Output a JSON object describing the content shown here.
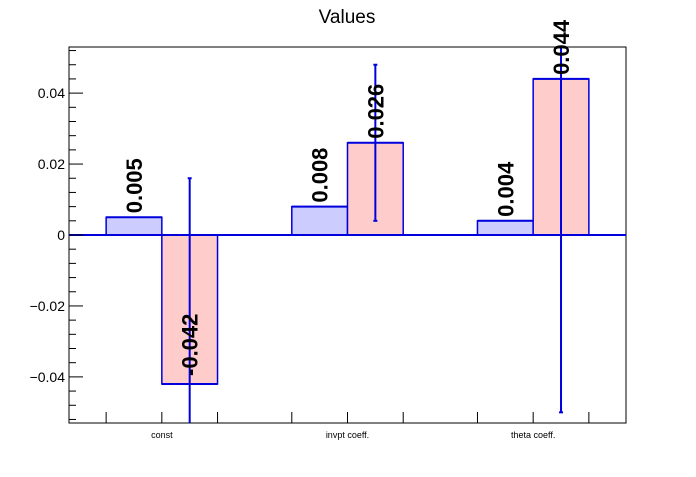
{
  "chart_data": {
    "type": "bar",
    "title": "Values",
    "xlabel": "",
    "ylabel": "",
    "categories": [
      "const",
      "invpt coeff.",
      "theta coeff."
    ],
    "ylim": [
      -0.053,
      0.053
    ],
    "y_ticks": [
      -0.04,
      -0.02,
      0,
      0.02,
      0.04
    ],
    "y_tick_labels": [
      "−0.04",
      "−0.02",
      "0",
      "0.02",
      "0.04"
    ],
    "grid": false,
    "series": [
      {
        "values": [
          0.005,
          0.008,
          0.004
        ],
        "labels": [
          "0.005",
          "0.008",
          "0.004"
        ],
        "errors": [
          0,
          0,
          0
        ],
        "fill": "#ccccff",
        "stroke": "#0000dd"
      },
      {
        "values": [
          -0.042,
          0.026,
          0.044
        ],
        "labels": [
          "-0.042",
          "0.026",
          "0.044"
        ],
        "errors": [
          0.058,
          0.022,
          0.094
        ],
        "fill": "#ffcccc",
        "stroke": "#0000dd"
      }
    ]
  }
}
